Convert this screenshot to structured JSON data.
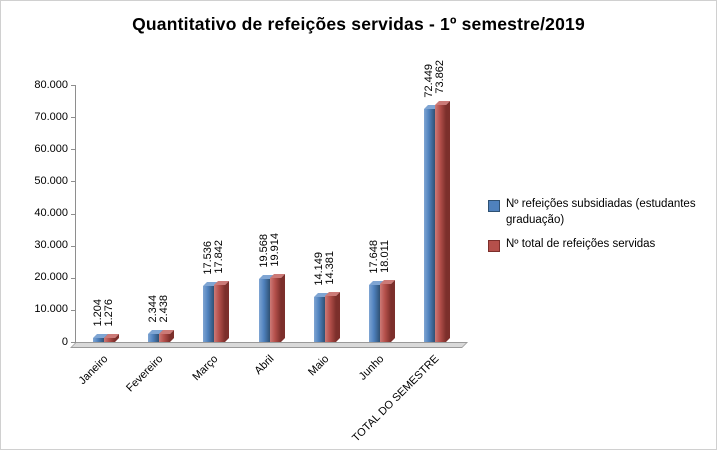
{
  "chart_data": {
    "type": "bar",
    "title": "Quantitativo de refeições servidas - 1º semestre/2019",
    "categories": [
      "Janeiro",
      "Fevereiro",
      "Março",
      "Abril",
      "Maio",
      "Junho",
      "TOTAL DO SEMESTRE"
    ],
    "series": [
      {
        "name": "Nº refeições subsidiadas (estudantes graduação)",
        "color": "#4f81bd",
        "color_light": "#7fa5d3",
        "color_dark": "#2f5173",
        "values": [
          1204,
          2344,
          17536,
          19568,
          14149,
          17648,
          72449
        ],
        "labels": [
          "1.204",
          "2.344",
          "17.536",
          "19.568",
          "14.149",
          "17.648",
          "72.449"
        ]
      },
      {
        "name": "Nº total  de refeições servidas",
        "color": "#b5504b",
        "color_light": "#cc7a77",
        "color_dark": "#7c2f2b",
        "values": [
          1276,
          2438,
          17842,
          19914,
          14381,
          18011,
          73862
        ],
        "labels": [
          "1.276",
          "2.438",
          "17.842",
          "19.914",
          "14.381",
          "18.011",
          "73.862"
        ]
      }
    ],
    "y_axis": {
      "min": 0,
      "max": 80000,
      "step": 10000,
      "tick_labels": [
        "0",
        "10.000",
        "20.000",
        "30.000",
        "40.000",
        "50.000",
        "60.000",
        "70.000",
        "80.000"
      ]
    },
    "legend_position": "right",
    "grid": false,
    "effect_3d": true
  }
}
